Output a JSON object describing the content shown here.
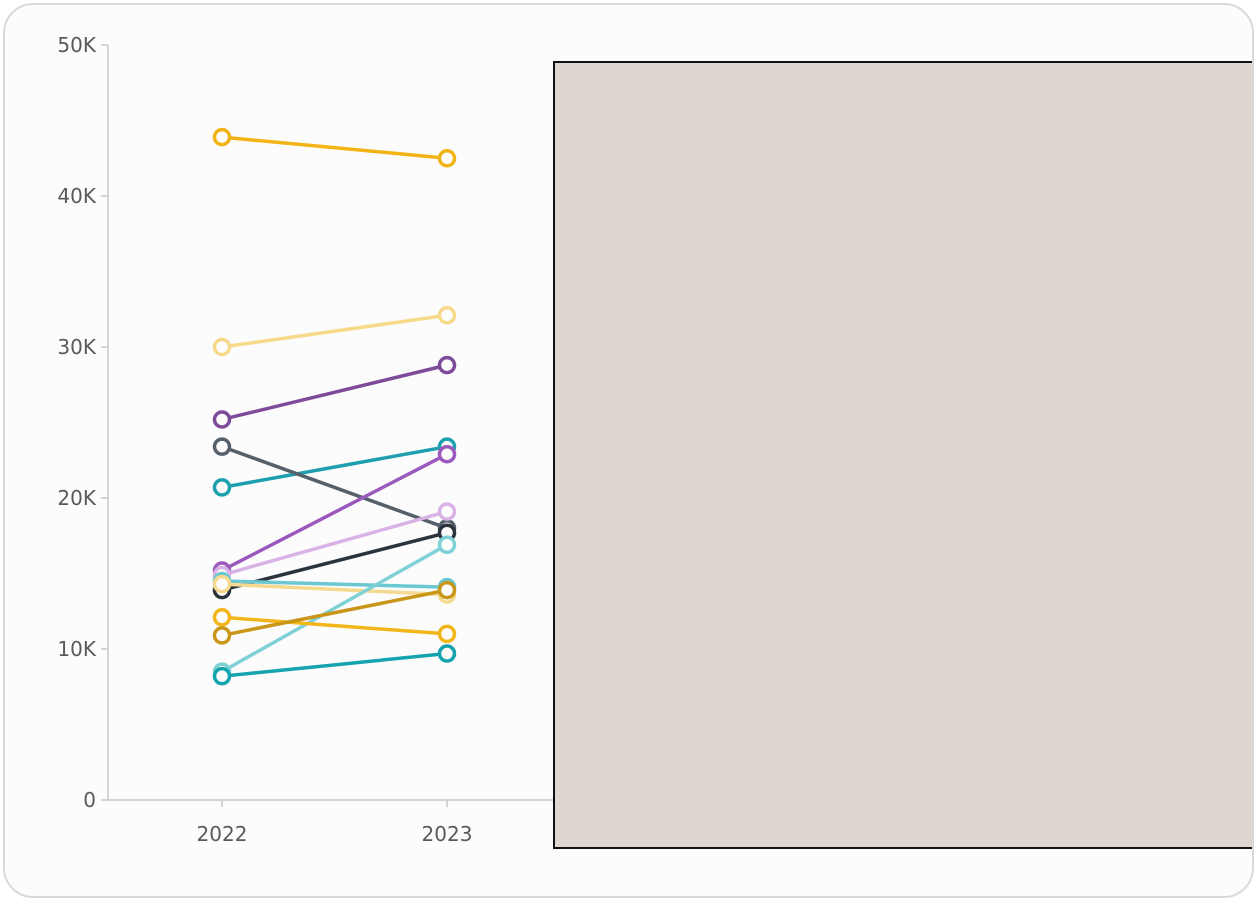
{
  "chart_data": {
    "type": "line",
    "categories": [
      "2022",
      "2023"
    ],
    "ylim": [
      0,
      50000
    ],
    "y_ticks": [
      {
        "value": 0,
        "label": "0"
      },
      {
        "value": 10000,
        "label": "10K"
      },
      {
        "value": 20000,
        "label": "20K"
      },
      {
        "value": 30000,
        "label": "30K"
      },
      {
        "value": 40000,
        "label": "40K"
      },
      {
        "value": 50000,
        "label": "50K"
      }
    ],
    "grid": false,
    "legend": "none",
    "series": [
      {
        "values": [
          43900,
          42500
        ],
        "color": "#f2b314"
      },
      {
        "values": [
          30000,
          32100
        ],
        "color": "#f7d98a"
      },
      {
        "values": [
          25200,
          28800
        ],
        "color": "#7e4a9a"
      },
      {
        "values": [
          20700,
          23400
        ],
        "color": "#1e9fae"
      },
      {
        "values": [
          23400,
          18000
        ],
        "color": "#55606a"
      },
      {
        "values": [
          15200,
          22900
        ],
        "color": "#9c59bd"
      },
      {
        "values": [
          14900,
          19100
        ],
        "color": "#d9b3e6"
      },
      {
        "values": [
          13900,
          17700
        ],
        "color": "#2b343d"
      },
      {
        "values": [
          14500,
          14100
        ],
        "color": "#6ac8d3"
      },
      {
        "values": [
          14300,
          13600
        ],
        "color": "#f5d98e"
      },
      {
        "values": [
          8500,
          16900
        ],
        "color": "#7fd1d6"
      },
      {
        "values": [
          12100,
          11000
        ],
        "color": "#f2b51a"
      },
      {
        "values": [
          10900,
          13900
        ],
        "color": "#c9961a"
      },
      {
        "values": [
          8200,
          9700
        ],
        "color": "#15a3ad"
      }
    ]
  }
}
